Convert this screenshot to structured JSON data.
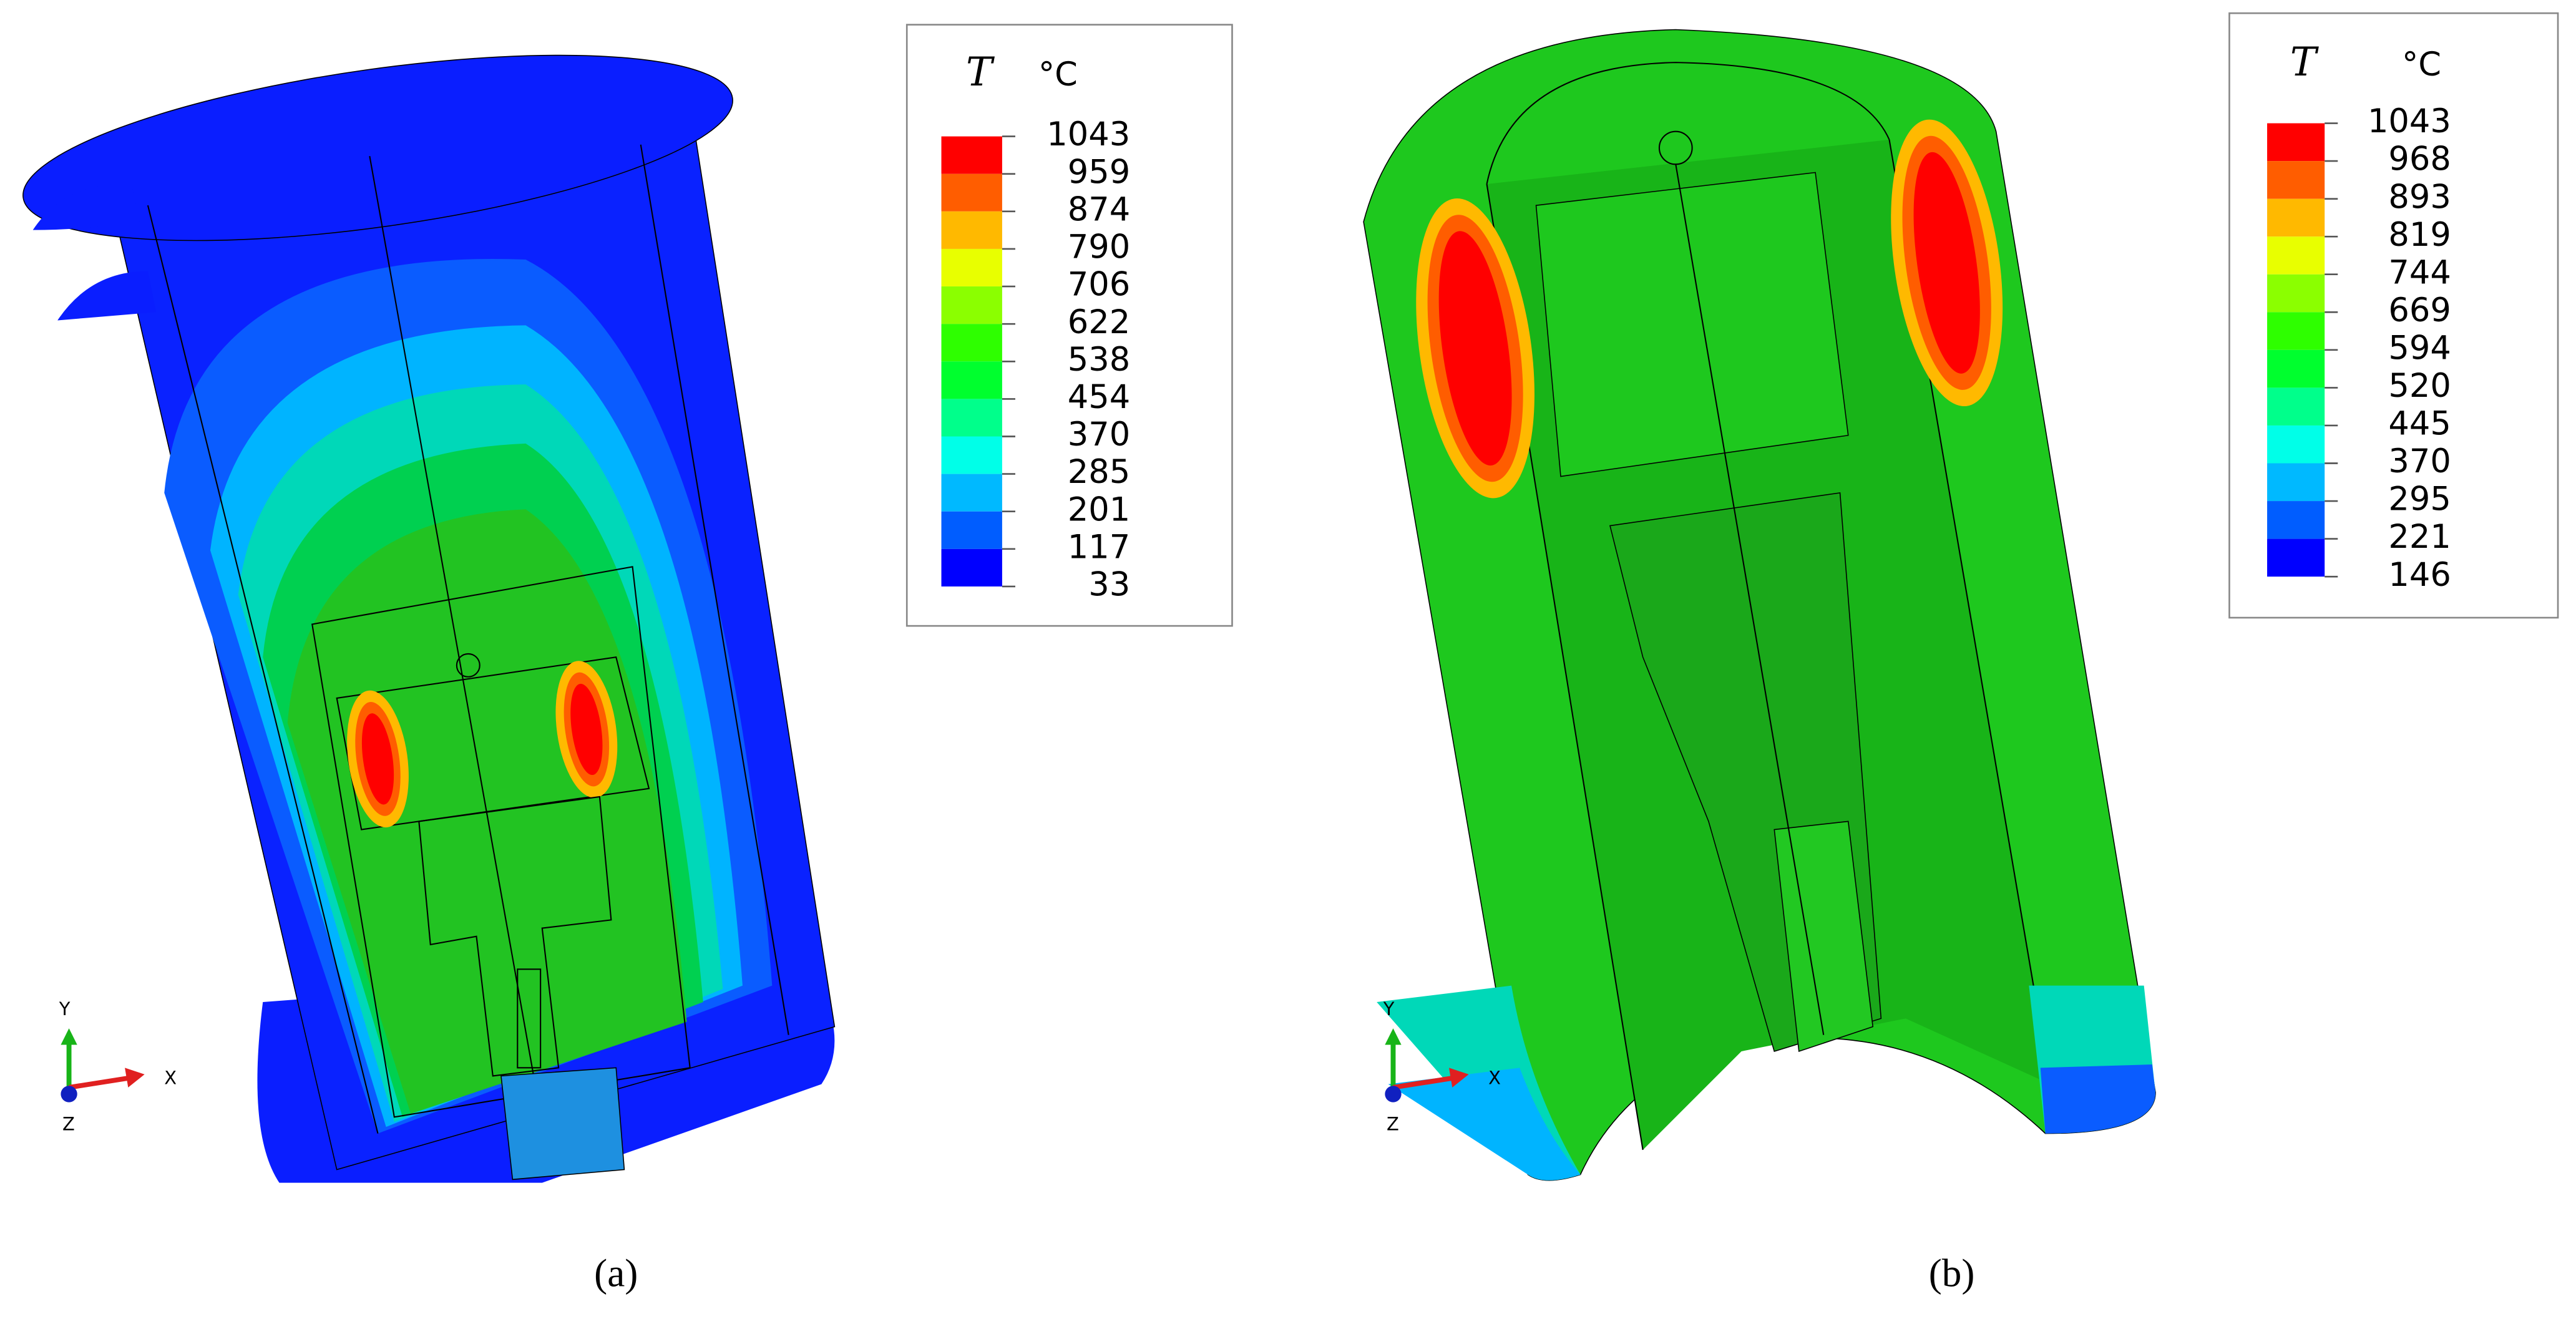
{
  "panels": [
    {
      "caption": "(a)",
      "legend": {
        "symbol": "T",
        "unit": "°C",
        "values": [
          1043,
          959,
          874,
          790,
          706,
          622,
          538,
          454,
          370,
          285,
          201,
          117,
          33
        ],
        "colors": [
          "#ff0000",
          "#ff5d00",
          "#ffb900",
          "#e8ff00",
          "#8bff00",
          "#2eff00",
          "#00ff2e",
          "#00ff8b",
          "#00ffe8",
          "#00b9ff",
          "#005dff",
          "#0000ff"
        ]
      },
      "triad": {
        "y": "Y",
        "x": "X",
        "z": "Z"
      }
    },
    {
      "caption": "(b)",
      "legend": {
        "symbol": "T",
        "unit": "°C",
        "values": [
          1043,
          968,
          893,
          819,
          744,
          669,
          594,
          520,
          445,
          370,
          295,
          221,
          146
        ],
        "colors": [
          "#ff0000",
          "#ff5d00",
          "#ffb900",
          "#e8ff00",
          "#8bff00",
          "#2eff00",
          "#00ff2e",
          "#00ff8b",
          "#00ffe8",
          "#00b9ff",
          "#005dff",
          "#0000ff"
        ]
      },
      "triad": {
        "y": "Y",
        "x": "X",
        "z": "Z"
      }
    }
  ]
}
